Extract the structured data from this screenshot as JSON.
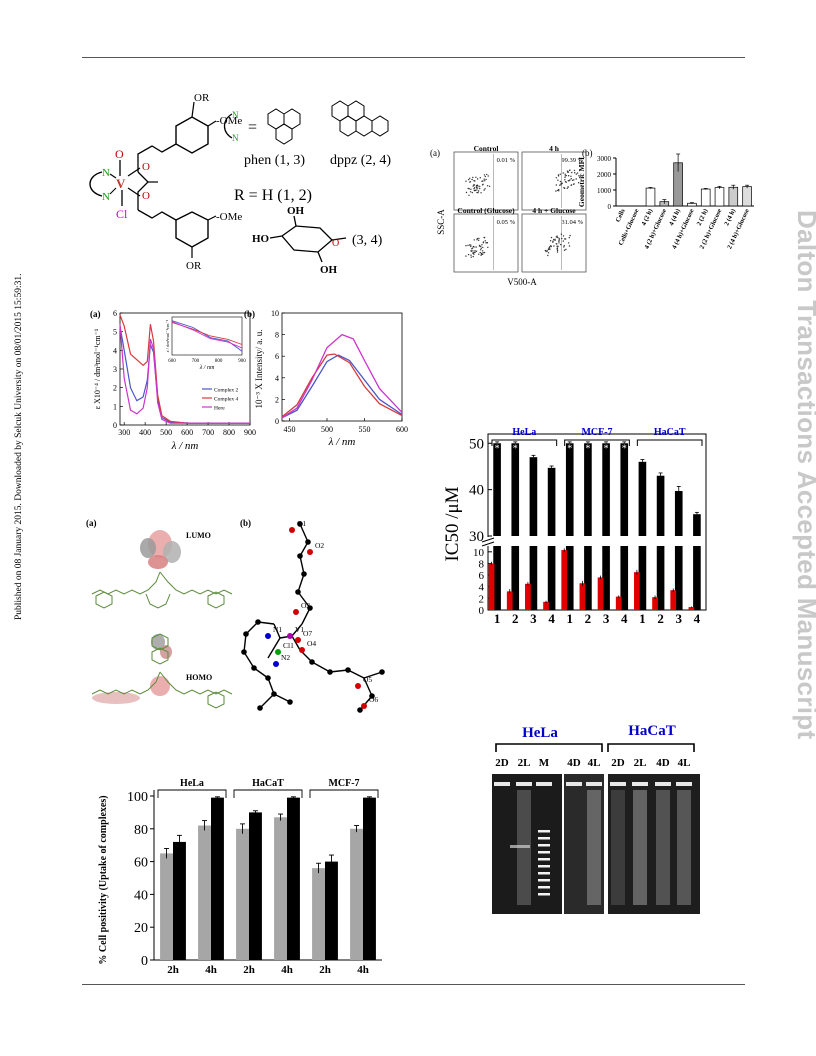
{
  "side_note": "Published on 08 January 2015. Downloaded by Selcuk University on 08/01/2015 15:59:31.",
  "watermark": "Dalton Transactions Accepted Manuscript",
  "scheme": {
    "metal": "V",
    "oxo": "O",
    "chloride": "Cl",
    "ome": "-OMe",
    "or": "OR",
    "nn_eq": "=",
    "phen_label": "phen (1, 3)",
    "dppz_label": "dppz (2, 4)",
    "r_eq": "R   =   H (1, 2)",
    "sugar_label": "(3, 4)",
    "oh": "OH",
    "ho": "HO"
  },
  "flow": {
    "label_a": "(a)",
    "label_b": "(b)",
    "panels": [
      "Control",
      "4 h",
      "Control (Glucose)",
      "4 h + Glucose"
    ],
    "percents": [
      "0.01 %",
      "99.39 %",
      "0.05 %",
      "31.04 %"
    ],
    "yaxis": "SSC-A",
    "xaxis": "V500-A"
  },
  "uvfl": {
    "label_a": "(a)",
    "label_b": "(b)",
    "uv_ylabel": "ε X10⁻⁴ / dm³mol⁻¹cm⁻¹",
    "uv_xlabel": "λ / nm",
    "inset_ylabel": "ε / dm³mol⁻¹cm⁻¹",
    "inset_xlabel": "λ / nm",
    "legend": [
      "Complex 2",
      "Complex 4",
      "Here"
    ],
    "fl_ylabel": "10⁻³ X Intensity/ a. u.",
    "fl_xlabel": "λ / nm"
  },
  "dft": {
    "label_a": "(a)",
    "label_b": "(b)",
    "lumo": "LUMO",
    "homo": "HOMO",
    "atoms": [
      "O1",
      "O2",
      "O3",
      "N1",
      "V1",
      "O7",
      "Cl1",
      "O4",
      "N2",
      "O5",
      "O6"
    ]
  },
  "gel": {
    "cells": [
      "HeLa",
      "HaCaT"
    ],
    "lanes": [
      "2D",
      "2L",
      "M",
      "4D",
      "4L",
      "2D",
      "2L",
      "4D",
      "4L"
    ]
  },
  "chart_data": [
    {
      "type": "bar",
      "title": "",
      "xlabel": "",
      "ylabel": "Geometric MFI",
      "label": "(b)",
      "categories": [
        "Cells",
        "Cells+Glucose",
        "4 (2 h)",
        "4 (2 h)+Glucose",
        "4 (4 h)",
        "4 (4 h)+Glucose",
        "2 (2 h)",
        "2 (2 h)+Glucose",
        "2 (4 h)",
        "2 (4 h)+Glucose"
      ],
      "values": [
        5,
        5,
        1120,
        270,
        2700,
        170,
        1060,
        1150,
        1170,
        1210
      ],
      "errors": [
        0,
        0,
        40,
        130,
        550,
        40,
        40,
        80,
        130,
        90
      ],
      "ylim": [
        0,
        3000
      ],
      "yticks": [
        0,
        1000,
        2000,
        3000
      ]
    },
    {
      "type": "bar",
      "ylabel": "IC50 /μM",
      "groups": [
        "HeLa",
        "MCF-7",
        "HaCaT"
      ],
      "categories": [
        "1",
        "2",
        "3",
        "4",
        "1",
        "2",
        "3",
        "4",
        "1",
        "2",
        "3",
        "4"
      ],
      "series": [
        {
          "color": "#000000",
          "values": [
            50,
            50,
            47,
            44.7,
            50,
            50,
            50,
            50,
            46,
            43,
            39.7,
            34.7
          ],
          "errors": [
            0.3,
            0.3,
            0.4,
            0.4,
            0.3,
            0.3,
            0.3,
            0.3,
            0.5,
            0.6,
            1.0,
            0.4
          ]
        },
        {
          "color": "#e00000",
          "values": [
            8,
            3.2,
            4.5,
            1.4,
            10.3,
            4.6,
            5.6,
            2.3,
            6.5,
            2.2,
            3.4,
            0.5
          ],
          "errors": [
            0.3,
            0.4,
            0.3,
            0.2,
            0.3,
            0.4,
            0.3,
            0.2,
            0.4,
            0.3,
            0.3,
            0.1
          ]
        }
      ],
      "asterisk": [
        "*",
        "*",
        "",
        "",
        "*",
        "*",
        "*",
        "*",
        "",
        "",
        "",
        ""
      ],
      "yticks_upper": [
        30,
        40,
        50
      ],
      "yticks_lower": [
        0,
        2,
        4,
        6,
        8,
        10
      ],
      "ylim_upper": [
        30,
        52
      ],
      "ylim_lower": [
        0,
        11
      ]
    },
    {
      "type": "bar",
      "ylabel": "% Cell positivity (Uptake of complexes)",
      "groups": [
        "HeLa",
        "HaCaT",
        "MCF-7"
      ],
      "categories": [
        "2h",
        "4h",
        "2h",
        "4h",
        "2h",
        "4h"
      ],
      "series": [
        {
          "color": "#a6a6a6",
          "values": [
            65,
            82,
            80,
            87,
            56,
            80
          ],
          "errors": [
            3,
            3,
            3,
            2,
            3,
            2
          ]
        },
        {
          "color": "#000000",
          "values": [
            72,
            99,
            90,
            99,
            60,
            99
          ],
          "errors": [
            4,
            0.5,
            1,
            0.5,
            4,
            0.5
          ]
        }
      ],
      "ylim": [
        0,
        100
      ],
      "yticks": [
        0,
        20,
        40,
        60,
        80,
        100
      ]
    },
    {
      "type": "line",
      "title": "",
      "x_range": [
        280,
        900
      ],
      "y_range": [
        0,
        6
      ],
      "xticks": [
        300,
        400,
        500,
        600,
        700,
        800,
        900
      ],
      "yticks": [
        0,
        1,
        2,
        3,
        4,
        5,
        6
      ],
      "series": [
        {
          "name": "Complex 2",
          "color": "#4a55c8",
          "x": [
            280,
            300,
            330,
            360,
            390,
            410,
            425,
            440,
            460,
            480,
            520,
            600,
            700,
            900
          ],
          "y": [
            5.3,
            4.0,
            2.0,
            1.3,
            1.5,
            2.4,
            4.3,
            3.9,
            1.4,
            0.4,
            0.15,
            0.1,
            0.1,
            0.1
          ]
        },
        {
          "name": "Complex 4",
          "color": "#d83a3a",
          "x": [
            280,
            300,
            330,
            360,
            390,
            410,
            425,
            440,
            460,
            480,
            520,
            600,
            700,
            900
          ],
          "y": [
            5.9,
            5.3,
            3.8,
            3.5,
            3.2,
            3.4,
            5.4,
            4.5,
            1.6,
            0.5,
            0.2,
            0.1,
            0.1,
            0.1
          ]
        },
        {
          "name": "Here",
          "color": "#cc33cc",
          "x": [
            280,
            300,
            330,
            360,
            390,
            410,
            425,
            440,
            460,
            480,
            520,
            600,
            700,
            900
          ],
          "y": [
            5.4,
            2.5,
            0.8,
            0.6,
            0.9,
            2.0,
            4.6,
            4.1,
            1.2,
            0.3,
            0.1,
            0.1,
            0.1,
            0.1
          ]
        }
      ]
    },
    {
      "type": "line",
      "title": "",
      "x_range": [
        440,
        600
      ],
      "y_range": [
        0,
        10
      ],
      "xticks": [
        450,
        500,
        550,
        600
      ],
      "yticks": [
        0,
        2,
        4,
        6,
        8,
        10
      ],
      "series": [
        {
          "color": "#4a55c8",
          "x": [
            440,
            460,
            480,
            500,
            515,
            530,
            550,
            570,
            600
          ],
          "y": [
            0.3,
            1.0,
            3.2,
            5.5,
            6.1,
            5.6,
            3.8,
            2.0,
            0.6
          ]
        },
        {
          "color": "#d83a3a",
          "x": [
            440,
            460,
            480,
            500,
            510,
            530,
            550,
            570,
            600
          ],
          "y": [
            0.4,
            1.5,
            4.0,
            6.1,
            6.2,
            5.4,
            3.2,
            1.6,
            0.5
          ]
        },
        {
          "color": "#cc33cc",
          "x": [
            440,
            460,
            480,
            500,
            520,
            535,
            550,
            570,
            600
          ],
          "y": [
            0.3,
            1.2,
            3.8,
            6.8,
            8.0,
            7.6,
            5.6,
            3.0,
            0.8
          ]
        }
      ]
    }
  ]
}
